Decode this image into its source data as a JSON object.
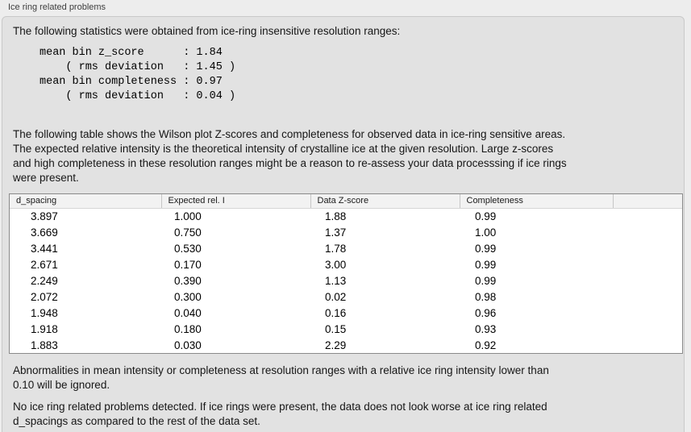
{
  "panel": {
    "title": "Ice ring related problems"
  },
  "intro_text": "The following statistics were obtained from ice-ring insensitive resolution ranges:",
  "stats_block": "mean bin z_score      : 1.84\n    ( rms deviation   : 1.45 )\nmean bin completeness : 0.97\n    ( rms deviation   : 0.04 )",
  "stats": {
    "mean_bin_z_score": "1.84",
    "z_score_rms_deviation": "1.45",
    "mean_bin_completeness": "0.97",
    "completeness_rms_deviation": "0.04"
  },
  "table_description": "The following table shows the Wilson plot Z-scores and completeness for observed data in ice-ring sensitive areas.\nThe expected relative intensity is the theoretical intensity of crystalline ice at the given resolution. Large z-scores\nand high completeness in these resolution ranges might be a reason to re-assess your data processsing if ice rings\nwere present.",
  "table": {
    "headers": [
      "d_spacing",
      "Expected rel. I",
      "Data Z-score",
      "Completeness"
    ],
    "rows": [
      [
        "3.897",
        "1.000",
        "1.88",
        "0.99"
      ],
      [
        "3.669",
        "0.750",
        "1.37",
        "1.00"
      ],
      [
        "3.441",
        "0.530",
        "1.78",
        "0.99"
      ],
      [
        "2.671",
        "0.170",
        "3.00",
        "0.99"
      ],
      [
        "2.249",
        "0.390",
        "1.13",
        "0.99"
      ],
      [
        "2.072",
        "0.300",
        "0.02",
        "0.98"
      ],
      [
        "1.948",
        "0.040",
        "0.16",
        "0.96"
      ],
      [
        "1.918",
        "0.180",
        "0.15",
        "0.93"
      ],
      [
        "1.883",
        "0.030",
        "2.29",
        "0.92"
      ]
    ]
  },
  "ignore_note": "Abnormalities in mean intensity or completeness at resolution ranges with a relative ice ring intensity lower than\n0.10 will be ignored.",
  "conclusion": "No ice ring related problems detected. If ice rings were present, the data does not look worse at ice ring related\nd_spacings as compared to the rest of the data set.",
  "colors": {
    "page_background": "#ededed",
    "panel_background": "#e2e2e2",
    "panel_border": "#c9c9c9",
    "table_background": "#ffffff",
    "table_border": "#8a8a8a",
    "table_header_background": "#f2f2f2",
    "text": "#161616"
  }
}
